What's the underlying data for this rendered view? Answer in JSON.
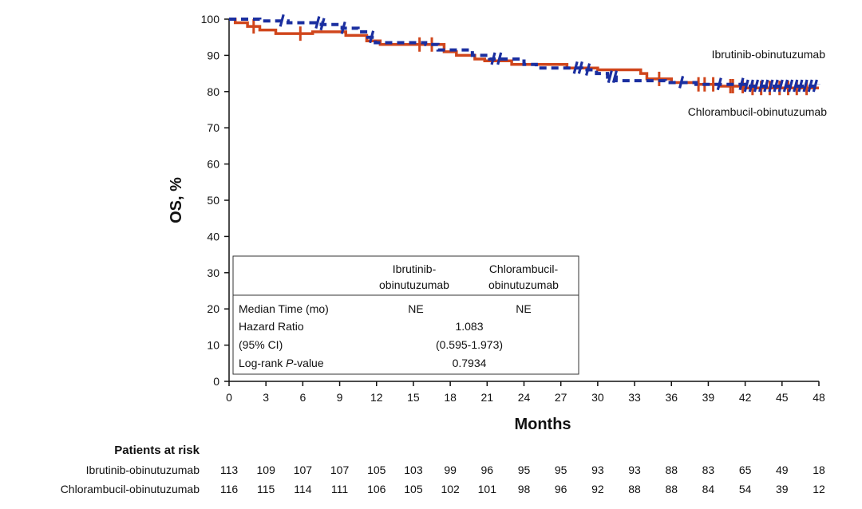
{
  "chart_data": {
    "type": "line",
    "title": "",
    "xlabel": "Months",
    "ylabel": "OS, %",
    "xlim": [
      0,
      48
    ],
    "ylim": [
      0,
      100
    ],
    "xticks": [
      "0",
      "3",
      "6",
      "9",
      "12",
      "15",
      "18",
      "21",
      "24",
      "27",
      "30",
      "33",
      "36",
      "39",
      "42",
      "45",
      "48"
    ],
    "yticks": [
      "0",
      "10",
      "20",
      "30",
      "40",
      "50",
      "60",
      "70",
      "80",
      "90",
      "100"
    ],
    "series": [
      {
        "name": "Ibrutinib-obinutuzumab",
        "color": "#d0461c",
        "style": "solid",
        "points": [
          [
            0,
            100
          ],
          [
            0.5,
            99
          ],
          [
            1.5,
            98
          ],
          [
            2.5,
            97
          ],
          [
            3.8,
            96
          ],
          [
            6.8,
            96.5
          ],
          [
            9.5,
            95.5
          ],
          [
            11.2,
            94
          ],
          [
            12.3,
            93
          ],
          [
            15.2,
            93
          ],
          [
            17.5,
            91
          ],
          [
            18.5,
            90
          ],
          [
            20,
            89
          ],
          [
            20.8,
            88.5
          ],
          [
            23,
            87.5
          ],
          [
            27.5,
            86.5
          ],
          [
            30,
            86
          ],
          [
            33.5,
            85
          ],
          [
            34,
            83.5
          ],
          [
            36,
            82.5
          ],
          [
            38,
            82
          ],
          [
            40,
            81.5
          ],
          [
            42,
            81
          ],
          [
            48,
            81
          ]
        ],
        "censor": [
          2,
          5.8,
          15.5,
          16.5,
          35,
          38.2,
          38.7,
          39.4,
          40.8,
          41,
          41.8,
          42.6,
          43.3,
          44,
          44.8,
          45.5,
          46.2,
          47
        ]
      },
      {
        "name": "Chlorambucil-obinutuzumab",
        "color": "#1b2fa0",
        "style": "dashed",
        "points": [
          [
            0,
            100
          ],
          [
            2.5,
            99.5
          ],
          [
            4.8,
            99
          ],
          [
            7.5,
            98.5
          ],
          [
            9.2,
            97.5
          ],
          [
            10.5,
            96.5
          ],
          [
            11.3,
            95
          ],
          [
            11.9,
            93.5
          ],
          [
            16,
            93
          ],
          [
            17,
            91.5
          ],
          [
            19.8,
            90
          ],
          [
            21.2,
            89
          ],
          [
            24,
            87.5
          ],
          [
            25,
            86.5
          ],
          [
            28.7,
            86
          ],
          [
            29.9,
            85
          ],
          [
            30.8,
            84
          ],
          [
            31.5,
            83
          ],
          [
            35.5,
            82.5
          ],
          [
            38,
            82
          ],
          [
            42,
            81.5
          ],
          [
            48,
            82
          ]
        ],
        "censor": [
          4.3,
          7.2,
          7.6,
          9.3,
          11.6,
          21.5,
          22,
          28.2,
          28.6,
          29.2,
          31,
          31.4,
          36.8,
          39.9,
          41.7,
          42.1,
          42.5,
          42.9,
          43.3,
          43.7,
          44.1,
          44.5,
          44.9,
          45.3,
          45.7,
          46.1,
          46.5,
          46.9,
          47.3,
          47.7
        ]
      }
    ],
    "annotations": [
      "Ibrutinib-obinutuzumab",
      "Chlorambucil-obinutuzumab"
    ],
    "stats_table": {
      "col1": [
        "Ibrutinib-",
        "obinutuzumab"
      ],
      "col2": [
        "Chlorambucil-",
        "obinutuzumab"
      ],
      "median_label": "Median Time (mo)",
      "median_v1": "NE",
      "median_v2": "NE",
      "hr_label": "Hazard Ratio",
      "hr_value": "1.083",
      "ci_label": "(95% CI)",
      "ci_value": "(0.595-1.973)",
      "p_label_a": "Log-rank ",
      "p_label_b": "P",
      "p_label_c": "-value",
      "p_value": "0.7934"
    },
    "at_risk": {
      "title": "Patients at risk",
      "rows": [
        {
          "label": "Ibrutinib-obinutuzumab",
          "values": [
            "113",
            "109",
            "107",
            "107",
            "105",
            "103",
            "99",
            "96",
            "95",
            "95",
            "93",
            "93",
            "88",
            "83",
            "65",
            "49",
            "18"
          ]
        },
        {
          "label": "Chlorambucil-obinutuzumab",
          "values": [
            "116",
            "115",
            "114",
            "111",
            "106",
            "105",
            "102",
            "101",
            "98",
            "96",
            "92",
            "88",
            "88",
            "84",
            "54",
            "39",
            "12"
          ]
        }
      ]
    }
  }
}
